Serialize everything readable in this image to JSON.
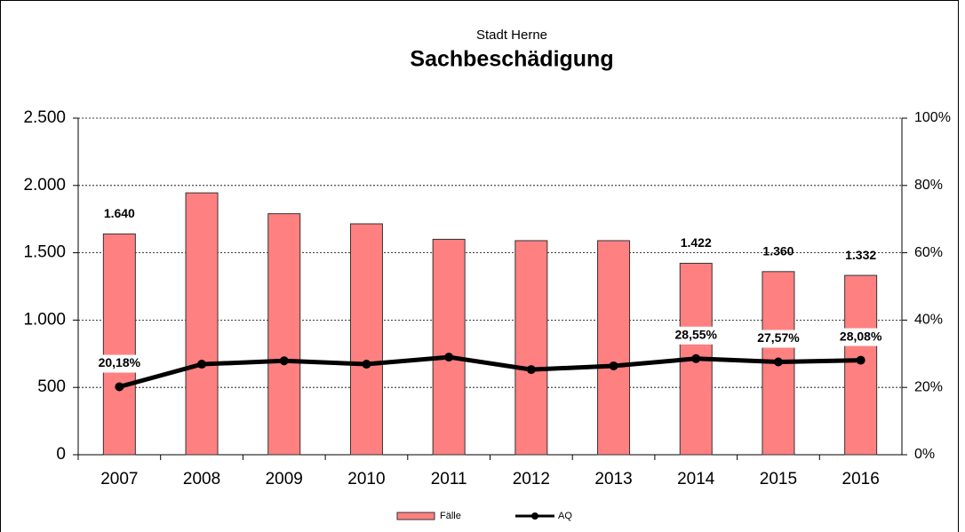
{
  "chart_data": {
    "type": "bar_line",
    "subtitle": "Stadt Herne",
    "title": "Sachbeschädigung",
    "categories": [
      "2007",
      "2008",
      "2009",
      "2010",
      "2011",
      "2012",
      "2013",
      "2014",
      "2015",
      "2016"
    ],
    "series": [
      {
        "name": "Fälle",
        "type": "bar",
        "color": "#ff8080",
        "values": [
          1640,
          1945,
          1790,
          1715,
          1600,
          1590,
          1590,
          1422,
          1360,
          1332
        ],
        "value_labels": [
          "1.640",
          null,
          null,
          null,
          null,
          null,
          null,
          "1.422",
          "1.360",
          "1.332"
        ]
      },
      {
        "name": "AQ",
        "type": "line",
        "axis": "y2",
        "color": "#000000",
        "values": [
          20.18,
          26.9,
          27.9,
          26.9,
          29.0,
          25.3,
          26.4,
          28.55,
          27.57,
          28.08
        ],
        "value_labels": [
          "20,18%",
          null,
          null,
          null,
          null,
          null,
          null,
          "28,55%",
          "27,57%",
          "28,08%"
        ]
      }
    ],
    "ylim": [
      0,
      2500
    ],
    "yticks": [
      0,
      500,
      {
        "value": 1000,
        "label": "1.000"
      },
      {
        "value": 1500,
        "label": "1.500"
      },
      {
        "value": 2000,
        "label": "2.000"
      },
      {
        "value": 2500,
        "label": "2.500"
      }
    ],
    "y2lim": [
      0,
      100
    ],
    "y2ticks": [
      {
        "value": 0,
        "label": "0%"
      },
      {
        "value": 20,
        "label": "20%"
      },
      {
        "value": 40,
        "label": "40%"
      },
      {
        "value": 60,
        "label": "60%"
      },
      {
        "value": 80,
        "label": "80%"
      },
      {
        "value": 100,
        "label": "100%"
      }
    ],
    "grid": true
  }
}
